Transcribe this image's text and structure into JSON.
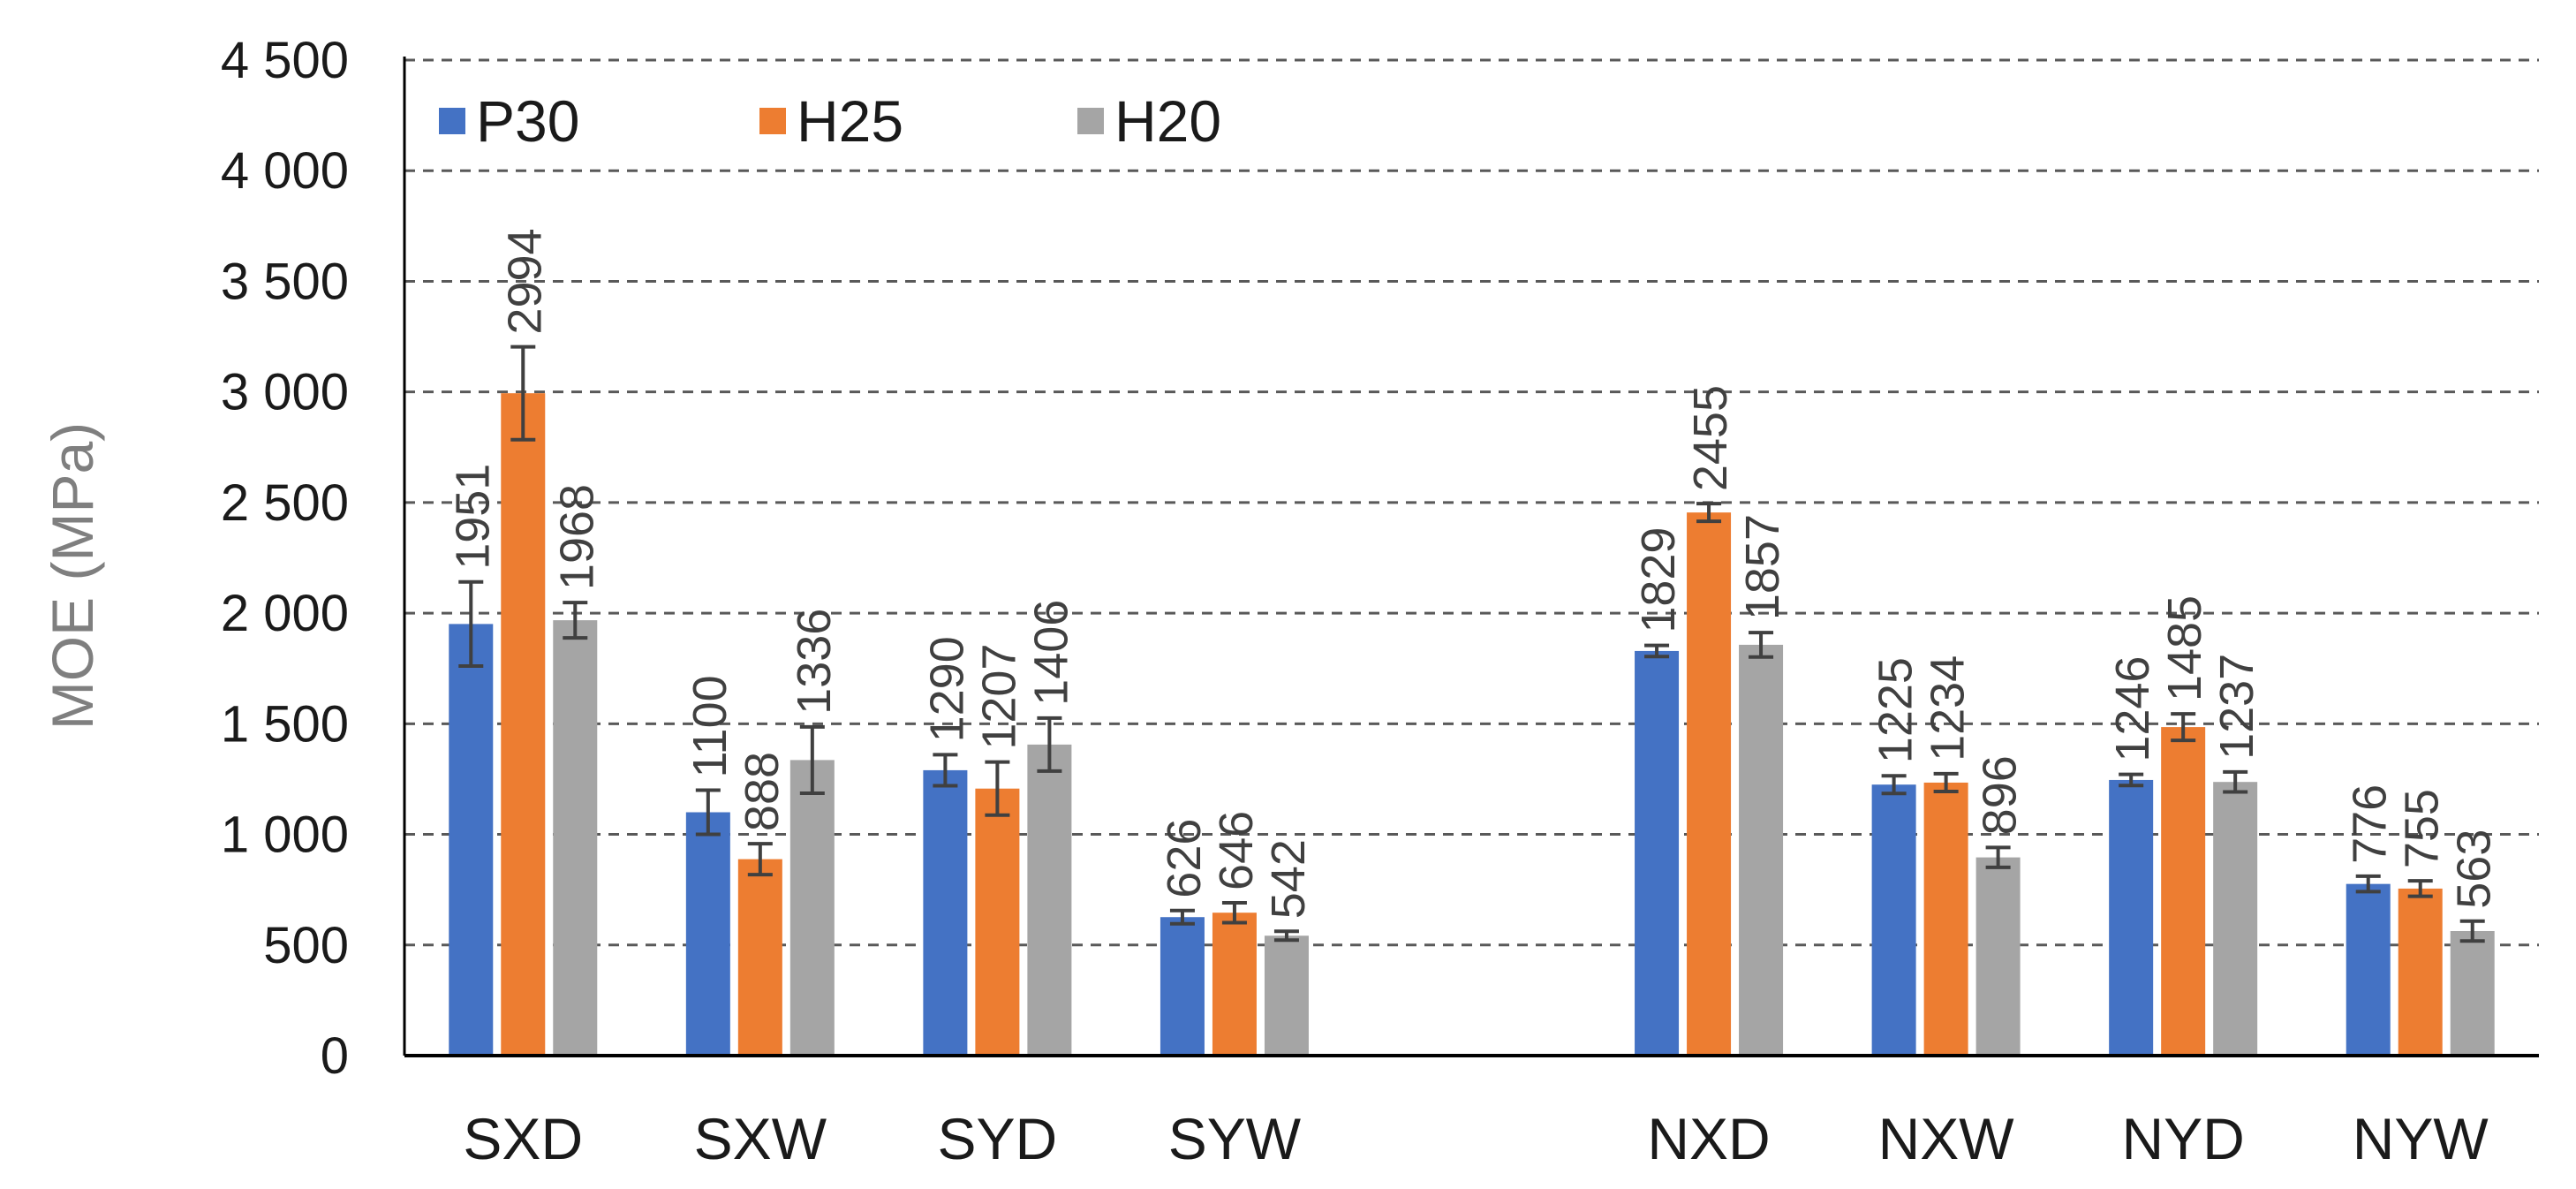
{
  "chart_data": {
    "type": "bar",
    "title": "",
    "xlabel": "",
    "ylabel": "MOE (MPa)",
    "ylim": [
      0,
      4500
    ],
    "yticks": [
      0,
      500,
      1000,
      1500,
      2000,
      2500,
      3000,
      3500,
      4000,
      4500
    ],
    "ytick_labels": [
      "0",
      "500",
      "1 000",
      "1 500",
      "2 000",
      "2 500",
      "3 000",
      "3 500",
      "4 000",
      "4 500"
    ],
    "grid": "dashed horizontal",
    "legend_position": "top-left",
    "categories": [
      "SXD",
      "SXW",
      "SYD",
      "SYW",
      "",
      "NXD",
      "NXW",
      "NYD",
      "NYW"
    ],
    "series": [
      {
        "name": "P30",
        "color": "#4472C4",
        "values": [
          1951,
          1100,
          1290,
          626,
          null,
          1829,
          1225,
          1246,
          776
        ],
        "errors": [
          190,
          100,
          70,
          30,
          null,
          25,
          40,
          25,
          35
        ]
      },
      {
        "name": "H25",
        "color": "#ED7D31",
        "values": [
          2994,
          888,
          1207,
          646,
          null,
          2455,
          1234,
          1485,
          755
        ],
        "errors": [
          210,
          70,
          120,
          45,
          null,
          40,
          40,
          60,
          35
        ]
      },
      {
        "name": "H20",
        "color": "#A5A5A5",
        "values": [
          1968,
          1336,
          1406,
          542,
          null,
          1857,
          896,
          1237,
          563
        ],
        "errors": [
          80,
          150,
          120,
          20,
          null,
          55,
          45,
          45,
          45
        ]
      }
    ],
    "data_labels": [
      [
        "1951",
        "2994",
        "1968"
      ],
      [
        "1100",
        "888",
        "1336"
      ],
      [
        "1290",
        "1207",
        "1406"
      ],
      [
        "626",
        "646",
        "542"
      ],
      null,
      [
        "1829",
        "2455",
        "1857"
      ],
      [
        "1225",
        "1234",
        "896"
      ],
      [
        "1246",
        "1485",
        "1237"
      ],
      [
        "776",
        "755",
        "563"
      ]
    ],
    "error_bar_color": "#404040",
    "axis_color": "#000000",
    "grid_color": "#595959"
  }
}
